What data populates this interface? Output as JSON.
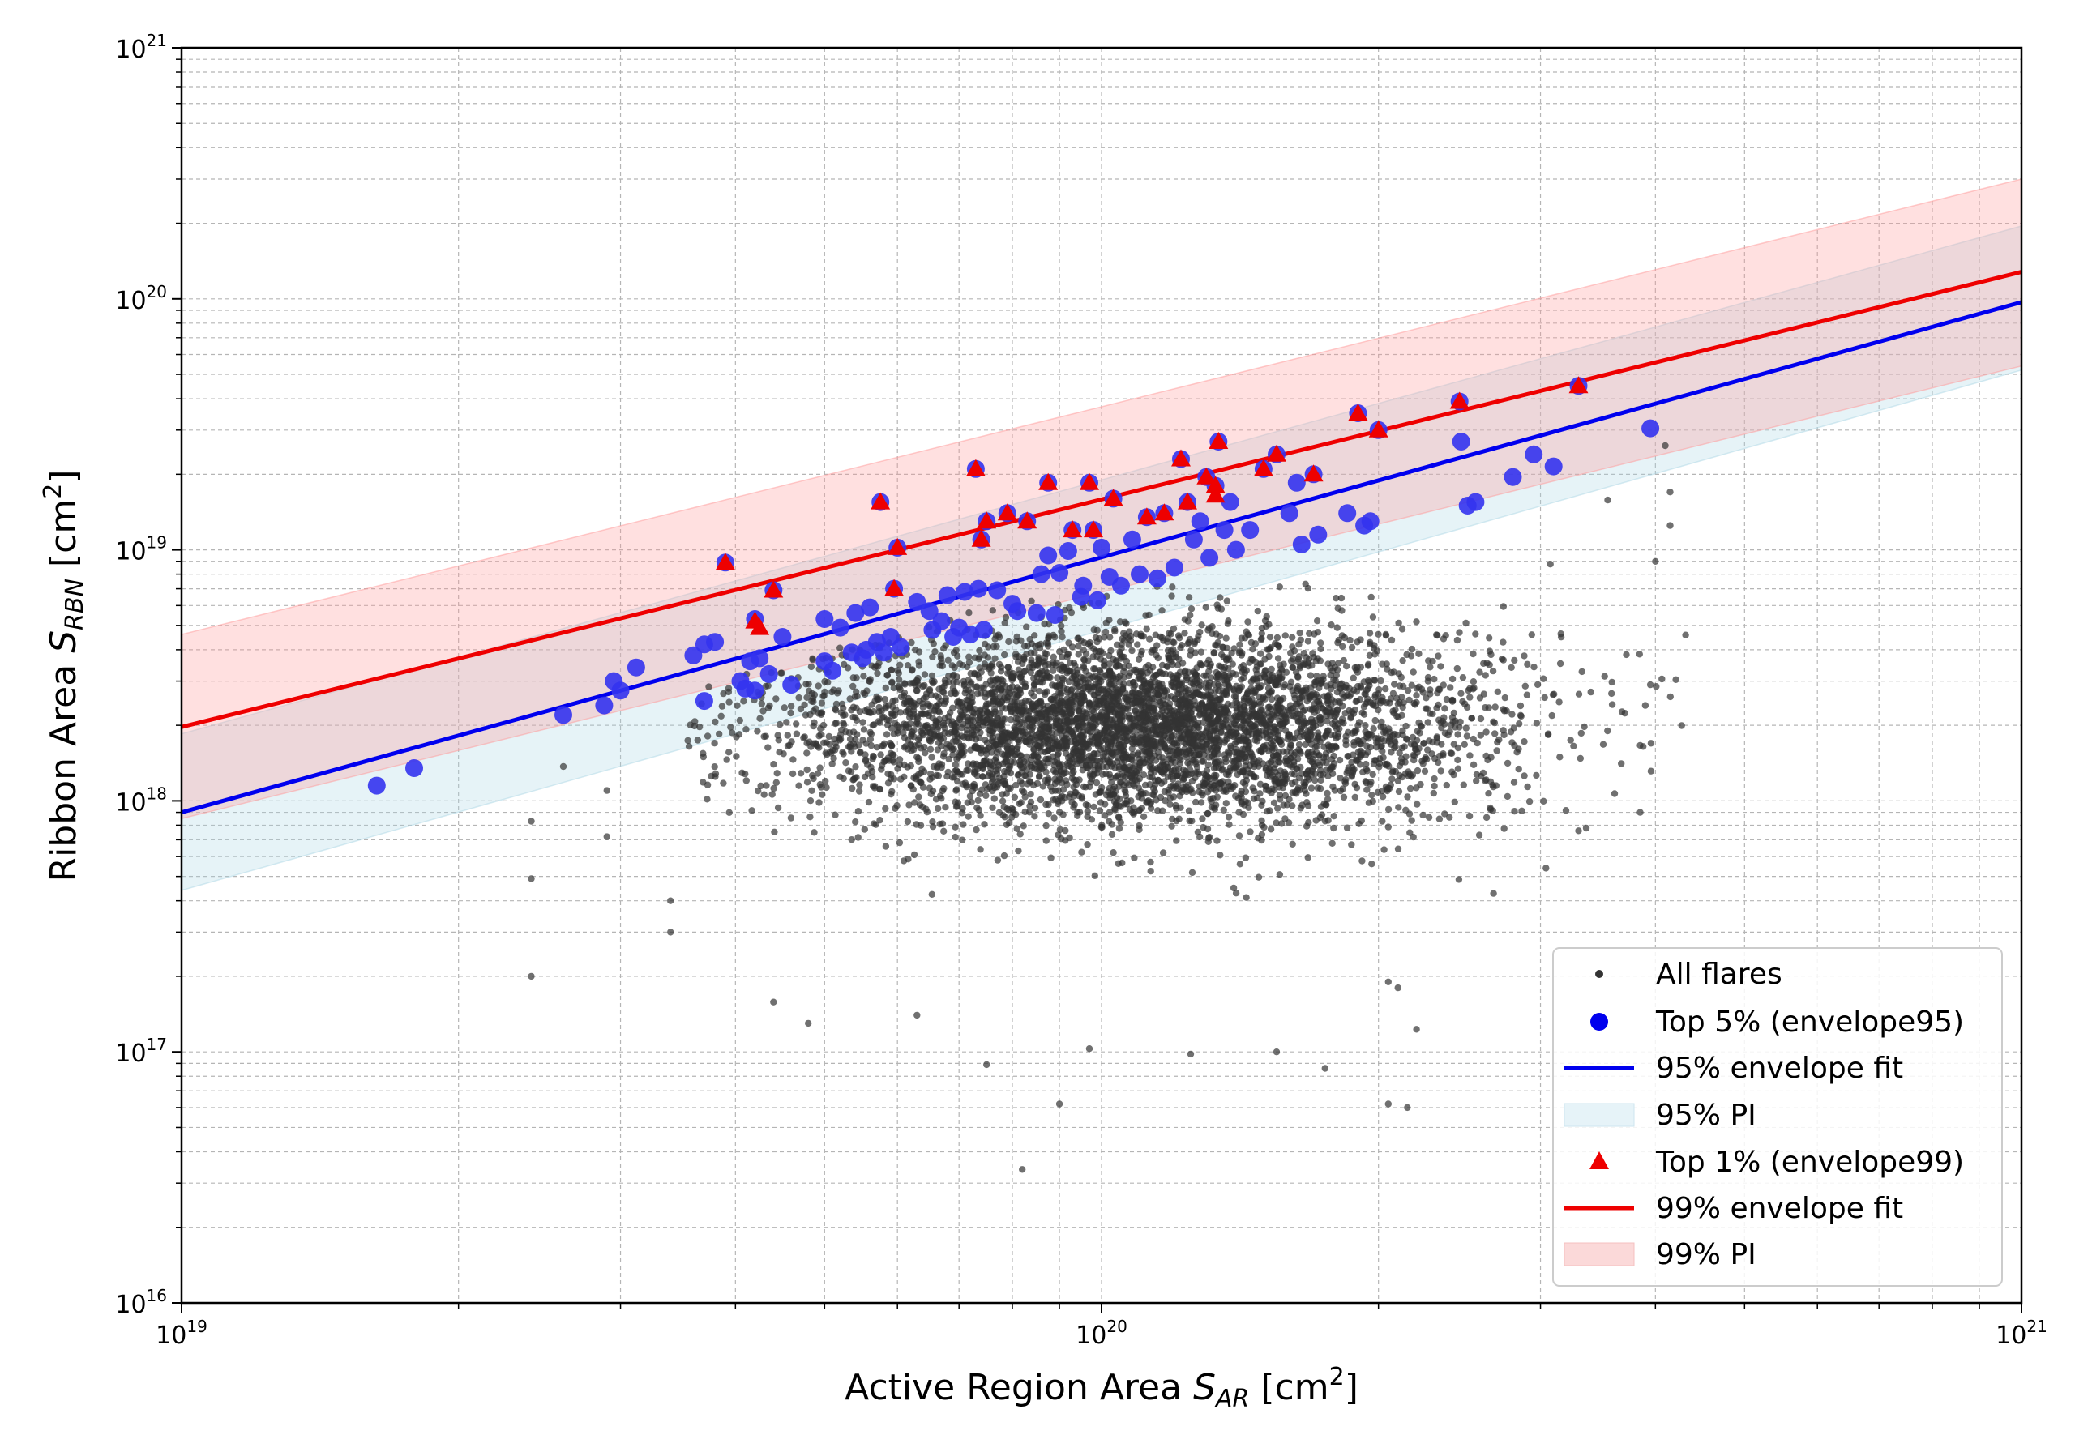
{
  "chart_data": {
    "type": "scatter",
    "title": "",
    "xlabel": {
      "prefix": "Active Region Area ",
      "symbol": "S",
      "sub": "AR",
      "unit_prefix": " [cm",
      "unit_sup": "2",
      "unit_suffix": "]"
    },
    "ylabel": {
      "prefix": "Ribbon Area ",
      "symbol": "S",
      "sub": "RBN",
      "unit_prefix": " [cm",
      "unit_sup": "2",
      "unit_suffix": "]"
    },
    "xscale": "log",
    "yscale": "log",
    "xlim": [
      1e+19,
      1e+21
    ],
    "ylim": [
      1e+16,
      1e+21
    ],
    "xticks": [
      {
        "value": 1e+19,
        "base": "10",
        "exp": "19"
      },
      {
        "value": 1e+20,
        "base": "10",
        "exp": "20"
      },
      {
        "value": 1e+21,
        "base": "10",
        "exp": "21"
      }
    ],
    "yticks": [
      {
        "value": 1e+16,
        "base": "10",
        "exp": "16"
      },
      {
        "value": 1e+17,
        "base": "10",
        "exp": "17"
      },
      {
        "value": 1e+18,
        "base": "10",
        "exp": "18"
      },
      {
        "value": 1e+19,
        "base": "10",
        "exp": "19"
      },
      {
        "value": 1e+20,
        "base": "10",
        "exp": "20"
      },
      {
        "value": 1e+21,
        "base": "10",
        "exp": "21"
      }
    ],
    "grid": true,
    "legend_position": "lower-right",
    "legend": [
      {
        "label": "All flares",
        "kind": "dot",
        "color": "#333333"
      },
      {
        "label": "Top 5% (envelope95)",
        "kind": "circle",
        "color": "#3333ee"
      },
      {
        "label": "95% envelope fit",
        "kind": "line",
        "color": "#0000ee"
      },
      {
        "label": "95% PI",
        "kind": "patch",
        "color": "#add8e6"
      },
      {
        "label": "Top 1% (envelope99)",
        "kind": "triangle",
        "color": "#ee0000"
      },
      {
        "label": "99% envelope fit",
        "kind": "line",
        "color": "#ee0000"
      },
      {
        "label": "99% PI",
        "kind": "patch",
        "color": "#ffaaaa"
      }
    ],
    "fits": [
      {
        "name": "95% envelope fit",
        "color": "#0000ee",
        "x": [
          1e+19,
          1e+21
        ],
        "y": [
          9e+17,
          9.7e+19
        ]
      },
      {
        "name": "99% envelope fit",
        "color": "#ee0000",
        "x": [
          1e+19,
          1e+21
        ],
        "y": [
          1.97e+18,
          1.28e+20
        ]
      }
    ],
    "bands": [
      {
        "name": "95% PI",
        "color": "#add8e6",
        "opacity": 0.3,
        "x": [
          1e+19,
          1e+21
        ],
        "lower": [
          4.4e+17,
          5.2e+19
        ],
        "upper": [
          1.85e+18,
          1.95e+20
        ]
      },
      {
        "name": "99% PI",
        "color": "#ff9999",
        "opacity": 0.3,
        "x": [
          1e+19,
          1e+21
        ],
        "lower": [
          8.5e+17,
          5.4e+19
        ],
        "upper": [
          4.6e+18,
          3e+20
        ]
      }
    ],
    "all_flares": {
      "name": "All flares",
      "color": "#333333",
      "n": 5000,
      "lgx_mean": 20.04,
      "lgx_sd": 0.19,
      "lgx_min": 19.55,
      "lgx_max": 20.66,
      "lgy_mean": 18.3,
      "lgy_sd": 0.19,
      "lgy_min": 17.5,
      "extra_points": [
        [
          2.4e+19,
          2e+17
        ],
        [
          2.4e+19,
          4.9e+17
        ],
        [
          2.4e+19,
          8.3e+17
        ],
        [
          2.6e+19,
          1.37e+18
        ],
        [
          2.9e+19,
          1.1e+18
        ],
        [
          2.9e+19,
          7.2e+17
        ],
        [
          3.4e+19,
          4e+17
        ],
        [
          3.4e+19,
          3e+17
        ],
        [
          4.4e+19,
          1.58e+17
        ],
        [
          4.8e+19,
          1.3e+17
        ],
        [
          6.3e+19,
          1.4e+17
        ],
        [
          7.5e+19,
          8.9e+16
        ],
        [
          8.2e+19,
          3.4e+16
        ],
        [
          9e+19,
          6.2e+16
        ],
        [
          9.7e+19,
          1.03e+17
        ],
        [
          1.25e+20,
          9.8e+16
        ],
        [
          1.55e+20,
          1e+17
        ],
        [
          1.75e+20,
          8.6e+16
        ],
        [
          2.05e+20,
          6.2e+16
        ],
        [
          2.15e+20,
          6e+16
        ],
        [
          2.2e+20,
          1.23e+17
        ],
        [
          2.05e+20,
          1.9e+17
        ],
        [
          3.85e+20,
          9e+17
        ],
        [
          3.9e+20,
          2.4e+18
        ],
        [
          3.95e+20,
          2.9e+18
        ],
        [
          4.1e+20,
          2.6e+19
        ],
        [
          4.15e+20,
          1.7e+19
        ],
        [
          4.15e+20,
          1.25e+19
        ],
        [
          4e+20,
          9e+18
        ],
        [
          3.55e+20,
          1.58e+19
        ],
        [
          3.3e+20,
          7.6e+17
        ],
        [
          2.1e+20,
          1.8e+17
        ]
      ]
    },
    "top5": {
      "name": "Top 5% (envelope95)",
      "color": "#3333ee",
      "points": [
        [
          1.63e+19,
          1.15e+18
        ],
        [
          1.79e+19,
          1.35e+18
        ],
        [
          2.6e+19,
          2.2e+18
        ],
        [
          2.88e+19,
          2.4e+18
        ],
        [
          2.95e+19,
          3e+18
        ],
        [
          3e+19,
          2.75e+18
        ],
        [
          3.12e+19,
          3.4e+18
        ],
        [
          3.6e+19,
          3.8e+18
        ],
        [
          3.7e+19,
          4.2e+18
        ],
        [
          3.7e+19,
          2.5e+18
        ],
        [
          3.8e+19,
          4.3e+18
        ],
        [
          3.9e+19,
          8.9e+18
        ],
        [
          4.05e+19,
          3e+18
        ],
        [
          4.1e+19,
          2.8e+18
        ],
        [
          4.15e+19,
          3.6e+18
        ],
        [
          4.2e+19,
          5.3e+18
        ],
        [
          4.2e+19,
          2.75e+18
        ],
        [
          4.25e+19,
          3.7e+18
        ],
        [
          4.35e+19,
          3.2e+18
        ],
        [
          4.4e+19,
          6.9e+18
        ],
        [
          4.5e+19,
          4.5e+18
        ],
        [
          4.6e+19,
          2.9e+18
        ],
        [
          5e+19,
          5.3e+18
        ],
        [
          5e+19,
          3.6e+18
        ],
        [
          5.1e+19,
          3.3e+18
        ],
        [
          5.2e+19,
          4.9e+18
        ],
        [
          5.35e+19,
          3.9e+18
        ],
        [
          5.4e+19,
          5.6e+18
        ],
        [
          5.5e+19,
          3.7e+18
        ],
        [
          5.55e+19,
          4e+18
        ],
        [
          5.6e+19,
          5.9e+18
        ],
        [
          5.7e+19,
          4.3e+18
        ],
        [
          5.75e+19,
          1.55e+19
        ],
        [
          5.8e+19,
          3.9e+18
        ],
        [
          5.9e+19,
          4.5e+18
        ],
        [
          5.95e+19,
          7e+18
        ],
        [
          6e+19,
          1.02e+19
        ],
        [
          6.05e+19,
          4.1e+18
        ],
        [
          6.3e+19,
          6.2e+18
        ],
        [
          6.5e+19,
          5.7e+18
        ],
        [
          6.55e+19,
          4.8e+18
        ],
        [
          6.7e+19,
          5.2e+18
        ],
        [
          6.8e+19,
          6.6e+18
        ],
        [
          6.9e+19,
          4.5e+18
        ],
        [
          7e+19,
          4.9e+18
        ],
        [
          7.1e+19,
          6.8e+18
        ],
        [
          7.2e+19,
          4.6e+18
        ],
        [
          7.3e+19,
          2.1e+19
        ],
        [
          7.35e+19,
          7e+18
        ],
        [
          7.4e+19,
          1.1e+19
        ],
        [
          7.45e+19,
          4.8e+18
        ],
        [
          7.5e+19,
          1.3e+19
        ],
        [
          7.7e+19,
          6.9e+18
        ],
        [
          7.9e+19,
          1.4e+19
        ],
        [
          8e+19,
          6.1e+18
        ],
        [
          8.1e+19,
          5.7e+18
        ],
        [
          8.3e+19,
          1.3e+19
        ],
        [
          8.5e+19,
          5.6e+18
        ],
        [
          8.6e+19,
          8e+18
        ],
        [
          8.75e+19,
          1.85e+19
        ],
        [
          8.75e+19,
          9.5e+18
        ],
        [
          8.9e+19,
          5.5e+18
        ],
        [
          9e+19,
          8.1e+18
        ],
        [
          9.2e+19,
          9.9e+18
        ],
        [
          9.3e+19,
          1.2e+19
        ],
        [
          9.5e+19,
          6.5e+18
        ],
        [
          9.55e+19,
          7.2e+18
        ],
        [
          9.7e+19,
          1.85e+19
        ],
        [
          9.8e+19,
          1.2e+19
        ],
        [
          9.9e+19,
          6.3e+18
        ],
        [
          1e+20,
          1.02e+19
        ],
        [
          1.02e+20,
          7.8e+18
        ],
        [
          1.03e+20,
          1.6e+19
        ],
        [
          1.05e+20,
          7.2e+18
        ],
        [
          1.08e+20,
          1.1e+19
        ],
        [
          1.1e+20,
          8e+18
        ],
        [
          1.12e+20,
          1.35e+19
        ],
        [
          1.15e+20,
          7.7e+18
        ],
        [
          1.17e+20,
          1.4e+19
        ],
        [
          1.2e+20,
          8.5e+18
        ],
        [
          1.22e+20,
          2.3e+19
        ],
        [
          1.24e+20,
          1.55e+19
        ],
        [
          1.26e+20,
          1.1e+19
        ],
        [
          1.28e+20,
          1.3e+19
        ],
        [
          1.3e+20,
          1.95e+19
        ],
        [
          1.31e+20,
          9.3e+18
        ],
        [
          1.33e+20,
          1.8e+19
        ],
        [
          1.34e+20,
          2.7e+19
        ],
        [
          1.36e+20,
          1.2e+19
        ],
        [
          1.38e+20,
          1.55e+19
        ],
        [
          1.4e+20,
          1e+19
        ],
        [
          1.45e+20,
          1.2e+19
        ],
        [
          1.5e+20,
          2.1e+19
        ],
        [
          1.55e+20,
          2.4e+19
        ],
        [
          1.6e+20,
          1.4e+19
        ],
        [
          1.63e+20,
          1.85e+19
        ],
        [
          1.65e+20,
          1.05e+19
        ],
        [
          1.7e+20,
          2e+19
        ],
        [
          1.72e+20,
          1.15e+19
        ],
        [
          1.85e+20,
          1.4e+19
        ],
        [
          1.9e+20,
          3.5e+19
        ],
        [
          1.93e+20,
          1.25e+19
        ],
        [
          1.96e+20,
          1.3e+19
        ],
        [
          2e+20,
          3e+19
        ],
        [
          2.45e+20,
          3.9e+19
        ],
        [
          2.46e+20,
          2.7e+19
        ],
        [
          2.5e+20,
          1.5e+19
        ],
        [
          2.55e+20,
          1.55e+19
        ],
        [
          2.8e+20,
          1.95e+19
        ],
        [
          2.95e+20,
          2.4e+19
        ],
        [
          3.1e+20,
          2.15e+19
        ],
        [
          3.3e+20,
          4.5e+19
        ],
        [
          3.95e+20,
          3.05e+19
        ]
      ]
    },
    "top1": {
      "name": "Top 1% (envelope99)",
      "color": "#ee0000",
      "points": [
        [
          3.9e+19,
          8.9e+18
        ],
        [
          4.2e+19,
          5.2e+18
        ],
        [
          4.25e+19,
          4.9e+18
        ],
        [
          4.4e+19,
          6.9e+18
        ],
        [
          5.75e+19,
          1.55e+19
        ],
        [
          6e+19,
          1.02e+19
        ],
        [
          5.95e+19,
          7e+18
        ],
        [
          7.3e+19,
          2.1e+19
        ],
        [
          7.4e+19,
          1.1e+19
        ],
        [
          7.5e+19,
          1.3e+19
        ],
        [
          7.9e+19,
          1.4e+19
        ],
        [
          8.3e+19,
          1.3e+19
        ],
        [
          8.75e+19,
          1.85e+19
        ],
        [
          9.3e+19,
          1.2e+19
        ],
        [
          9.7e+19,
          1.85e+19
        ],
        [
          9.8e+19,
          1.2e+19
        ],
        [
          1.03e+20,
          1.6e+19
        ],
        [
          1.12e+20,
          1.35e+19
        ],
        [
          1.17e+20,
          1.4e+19
        ],
        [
          1.22e+20,
          2.3e+19
        ],
        [
          1.24e+20,
          1.55e+19
        ],
        [
          1.3e+20,
          1.95e+19
        ],
        [
          1.33e+20,
          1.8e+19
        ],
        [
          1.34e+20,
          2.7e+19
        ],
        [
          1.33e+20,
          1.65e+19
        ],
        [
          1.5e+20,
          2.1e+19
        ],
        [
          1.55e+20,
          2.4e+19
        ],
        [
          1.7e+20,
          2e+19
        ],
        [
          1.9e+20,
          3.5e+19
        ],
        [
          2e+20,
          3e+19
        ],
        [
          2.45e+20,
          3.9e+19
        ],
        [
          3.3e+20,
          4.5e+19
        ]
      ]
    }
  }
}
